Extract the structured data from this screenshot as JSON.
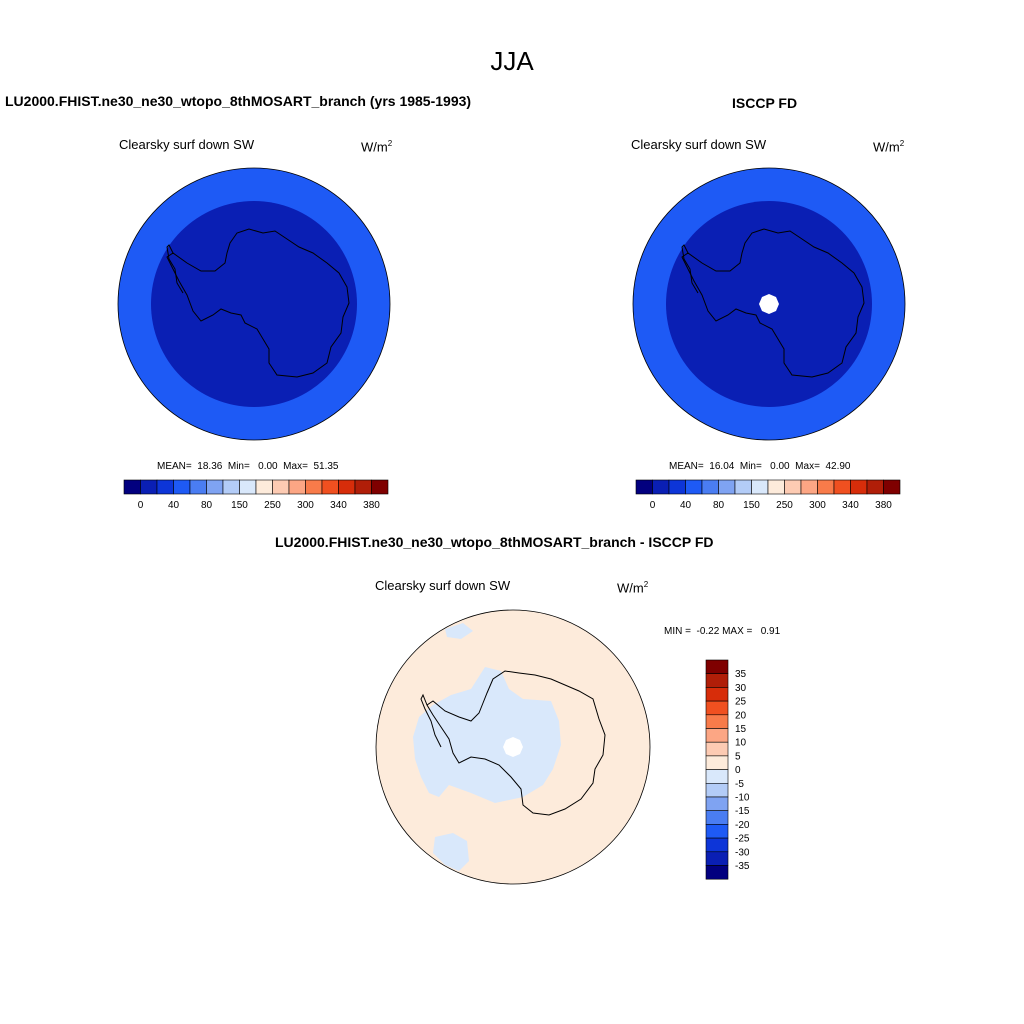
{
  "figure": {
    "title": "JJA"
  },
  "panels": [
    {
      "title": "LU2000.FHIST.ne30_ne30_wtopo_8thMOSART_branch (yrs 1985-1993)",
      "variable": "Clearsky surf down SW",
      "units": "W/m",
      "units_sup": "2",
      "stats": "MEAN=  18.36  Min=   0.00  Max=  51.35"
    },
    {
      "title": "ISCCP FD",
      "variable": "Clearsky surf down SW",
      "units": "W/m",
      "units_sup": "2",
      "stats": "MEAN=  16.04  Min=   0.00  Max=  42.90"
    },
    {
      "title": "LU2000.FHIST.ne30_ne30_wtopo_8thMOSART_branch - ISCCP FD",
      "variable": "Clearsky surf down SW",
      "units": "W/m",
      "units_sup": "2",
      "stats": "MIN =  -0.22 MAX =   0.91"
    }
  ],
  "chart_data": [
    {
      "type": "heatmap",
      "projection": "south polar stereographic",
      "field": "Clearsky surf down SW (model)",
      "rings": [
        {
          "range": "outer",
          "color": "#1E5AF5"
        },
        {
          "range": "inner",
          "color": "#0A1FB4"
        }
      ],
      "colorbar": {
        "orientation": "horizontal",
        "colors": [
          "#02007F",
          "#0A1FB4",
          "#0D35D8",
          "#1E5AF5",
          "#4A7DF2",
          "#7FA3F2",
          "#B3CCF7",
          "#D9E8FB",
          "#FDEBDB",
          "#FDCBB3",
          "#FCA684",
          "#F87B4A",
          "#F05020",
          "#D72D0A",
          "#B01E08",
          "#7F0000"
        ],
        "tick_labels": [
          "0",
          "40",
          "80",
          "150",
          "250",
          "300",
          "340",
          "380"
        ]
      },
      "mean": 18.36,
      "min": 0.0,
      "max": 51.35
    },
    {
      "type": "heatmap",
      "projection": "south polar stereographic",
      "field": "Clearsky surf down SW (ISCCP FD)",
      "rings": [
        {
          "range": "outer",
          "color": "#1E5AF5"
        },
        {
          "range": "inner",
          "color": "#0A1FB4"
        },
        {
          "range": "pole (missing)",
          "color": "#FFFFFF"
        }
      ],
      "colorbar": {
        "orientation": "horizontal",
        "colors": [
          "#02007F",
          "#0A1FB4",
          "#0D35D8",
          "#1E5AF5",
          "#4A7DF2",
          "#7FA3F2",
          "#B3CCF7",
          "#D9E8FB",
          "#FDEBDB",
          "#FDCBB3",
          "#FCA684",
          "#F87B4A",
          "#F05020",
          "#D72D0A",
          "#B01E08",
          "#7F0000"
        ],
        "tick_labels": [
          "0",
          "40",
          "80",
          "150",
          "250",
          "300",
          "340",
          "380"
        ]
      },
      "mean": 16.04,
      "min": 0.0,
      "max": 42.9
    },
    {
      "type": "heatmap",
      "projection": "south polar stereographic",
      "field": "Clearsky surf down SW difference",
      "background_color": "#FDEBDB",
      "negative_region_color": "#D9E8FB",
      "colorbar": {
        "orientation": "vertical",
        "colors": [
          "#7F0000",
          "#B01E08",
          "#D72D0A",
          "#F05020",
          "#F87B4A",
          "#FCA684",
          "#FDCBB3",
          "#FDEBDB",
          "#D9E8FB",
          "#B3CCF7",
          "#7FA3F2",
          "#4A7DF2",
          "#1E5AF5",
          "#0D35D8",
          "#0A1FB4",
          "#02007F"
        ],
        "tick_labels": [
          "35",
          "30",
          "25",
          "20",
          "15",
          "10",
          "5",
          "0",
          "-5",
          "-10",
          "-15",
          "-20",
          "-25",
          "-30",
          "-35"
        ]
      },
      "min": -0.22,
      "max": 0.91
    }
  ]
}
